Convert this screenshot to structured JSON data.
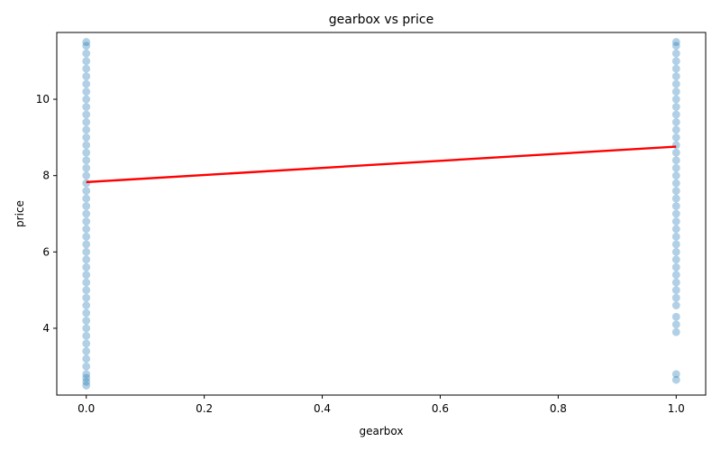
{
  "chart_data": {
    "type": "scatter",
    "title": "gearbox vs price",
    "xlabel": "gearbox",
    "ylabel": "price",
    "xlim": [
      -0.05,
      1.05
    ],
    "ylim": [
      2.25,
      11.75
    ],
    "xticks": [
      0.0,
      0.2,
      0.4,
      0.6,
      0.8,
      1.0
    ],
    "xtick_labels": [
      "0.0",
      "0.2",
      "0.4",
      "0.6",
      "0.8",
      "1.0"
    ],
    "yticks": [
      4,
      6,
      8,
      10
    ],
    "ytick_labels": [
      "4",
      "6",
      "8",
      "10"
    ],
    "grid": false,
    "legend": "none",
    "point_color": "#1f77b4",
    "line_color": "#ff0000",
    "series": [
      {
        "kind": "points",
        "x": 0,
        "y_values": [
          2.5,
          2.6,
          2.7,
          2.8,
          3.0,
          3.2,
          3.4,
          3.6,
          3.8,
          4.0,
          4.2,
          4.4,
          4.6,
          4.8,
          5.0,
          5.2,
          5.4,
          5.6,
          5.8,
          6.0,
          6.2,
          6.4,
          6.6,
          6.8,
          7.0,
          7.2,
          7.4,
          7.6,
          7.8,
          8.0,
          8.2,
          8.4,
          8.6,
          8.8,
          9.0,
          9.2,
          9.4,
          9.6,
          9.8,
          10.0,
          10.2,
          10.4,
          10.6,
          10.8,
          11.0,
          11.2,
          11.4,
          11.5
        ]
      },
      {
        "kind": "points",
        "x": 1,
        "y_values": [
          2.65,
          2.8,
          3.9,
          4.1,
          4.3,
          4.6,
          4.8,
          5.0,
          5.2,
          5.4,
          5.6,
          5.8,
          6.0,
          6.2,
          6.4,
          6.6,
          6.8,
          7.0,
          7.2,
          7.4,
          7.6,
          7.8,
          8.0,
          8.2,
          8.4,
          8.6,
          8.8,
          9.0,
          9.2,
          9.4,
          9.6,
          9.8,
          10.0,
          10.2,
          10.4,
          10.6,
          10.8,
          11.0,
          11.2,
          11.4,
          11.5
        ]
      },
      {
        "kind": "regression_line",
        "x": [
          0,
          1
        ],
        "y": [
          7.83,
          8.76
        ]
      }
    ]
  }
}
